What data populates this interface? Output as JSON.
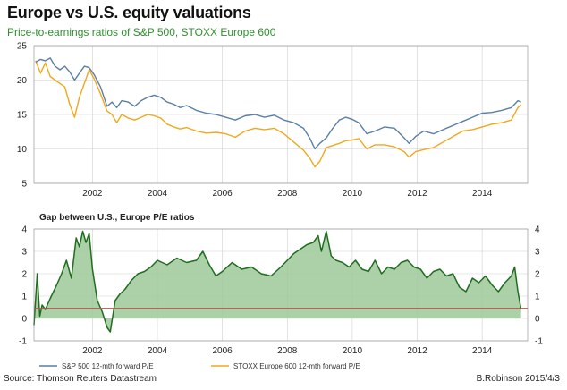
{
  "header": {
    "title": "Europe vs U.S. equity valuations",
    "subtitle": "Price-to-earnings ratios of S&P 500, STOXX Europe 600"
  },
  "footer": {
    "source": "Source: Thomson Reuters Datastream",
    "credit": "B.Robinson  2015/4/3"
  },
  "colors": {
    "sp500": "#5a7fa6",
    "stoxx": "#f0a81e",
    "gap_fill": "#9dc99a",
    "gap_line": "#1f6d1f",
    "zero_line": "#c0504d",
    "grid": "#d0d0d0"
  },
  "chart_data": [
    {
      "type": "line",
      "title": "Europe vs U.S. equity valuations",
      "subtitle": "Price-to-earnings ratios of S&P 500, STOXX Europe 600",
      "xlabel": "",
      "ylabel": "",
      "xlim": [
        2000.2,
        2015.4
      ],
      "ylim": [
        5,
        25
      ],
      "yticks": [
        5,
        10,
        15,
        20,
        25
      ],
      "xticks": [
        2002,
        2004,
        2006,
        2008,
        2010,
        2012,
        2014
      ],
      "grid": true,
      "series": [
        {
          "name": "S&P 500 12-mth forward P/E",
          "x": [
            2000.25,
            2000.4,
            2000.55,
            2000.7,
            2000.85,
            2001.0,
            2001.15,
            2001.3,
            2001.45,
            2001.6,
            2001.75,
            2001.9,
            2002.05,
            2002.25,
            2002.45,
            2002.6,
            2002.75,
            2002.9,
            2003.1,
            2003.3,
            2003.5,
            2003.7,
            2003.9,
            2004.1,
            2004.3,
            2004.5,
            2004.7,
            2004.9,
            2005.2,
            2005.5,
            2005.8,
            2006.1,
            2006.4,
            2006.7,
            2007.0,
            2007.3,
            2007.6,
            2007.9,
            2008.2,
            2008.5,
            2008.7,
            2008.85,
            2009.0,
            2009.2,
            2009.4,
            2009.6,
            2009.8,
            2010.0,
            2010.2,
            2010.45,
            2010.7,
            2011.0,
            2011.3,
            2011.6,
            2011.75,
            2011.95,
            2012.2,
            2012.5,
            2012.8,
            2013.1,
            2013.4,
            2013.7,
            2014.0,
            2014.3,
            2014.6,
            2014.9,
            2015.1,
            2015.2
          ],
          "values": [
            22.6,
            23.0,
            22.8,
            23.2,
            22.0,
            21.5,
            22.0,
            21.2,
            20.0,
            21.0,
            22.0,
            21.8,
            20.8,
            19.0,
            16.2,
            16.8,
            16.0,
            17.0,
            16.8,
            16.2,
            17.0,
            17.5,
            17.8,
            17.5,
            16.8,
            16.5,
            16.0,
            16.3,
            15.6,
            15.2,
            15.0,
            14.6,
            14.2,
            14.8,
            15.0,
            14.6,
            14.9,
            14.2,
            13.8,
            13.0,
            11.5,
            10.0,
            10.8,
            11.6,
            13.0,
            14.2,
            14.6,
            14.3,
            13.8,
            12.2,
            12.6,
            13.2,
            13.0,
            11.6,
            10.8,
            11.8,
            12.6,
            12.2,
            12.8,
            13.4,
            14.0,
            14.6,
            15.2,
            15.3,
            15.6,
            16.0,
            17.0,
            16.8
          ]
        },
        {
          "name": "STOXX Europe 600 12-mth forward P/E",
          "x": [
            2000.25,
            2000.4,
            2000.55,
            2000.7,
            2000.85,
            2001.0,
            2001.15,
            2001.3,
            2001.45,
            2001.6,
            2001.75,
            2001.9,
            2002.05,
            2002.25,
            2002.45,
            2002.6,
            2002.75,
            2002.9,
            2003.1,
            2003.3,
            2003.5,
            2003.7,
            2003.9,
            2004.1,
            2004.3,
            2004.5,
            2004.7,
            2004.9,
            2005.2,
            2005.5,
            2005.8,
            2006.1,
            2006.4,
            2006.7,
            2007.0,
            2007.3,
            2007.6,
            2007.9,
            2008.2,
            2008.5,
            2008.7,
            2008.85,
            2009.0,
            2009.2,
            2009.4,
            2009.6,
            2009.8,
            2010.0,
            2010.2,
            2010.45,
            2010.7,
            2011.0,
            2011.3,
            2011.6,
            2011.75,
            2011.95,
            2012.2,
            2012.5,
            2012.8,
            2013.1,
            2013.4,
            2013.7,
            2014.0,
            2014.3,
            2014.6,
            2014.9,
            2015.1,
            2015.2
          ],
          "values": [
            22.8,
            21.0,
            22.5,
            20.5,
            20.0,
            19.5,
            19.0,
            16.5,
            14.6,
            17.5,
            19.5,
            21.5,
            20.2,
            18.0,
            15.5,
            15.0,
            13.8,
            15.0,
            14.5,
            14.2,
            14.6,
            15.0,
            14.8,
            14.5,
            13.6,
            13.2,
            12.9,
            13.1,
            12.6,
            12.3,
            12.4,
            12.2,
            11.7,
            12.6,
            13.0,
            12.8,
            13.0,
            12.2,
            11.0,
            9.8,
            8.6,
            7.4,
            8.2,
            10.2,
            10.5,
            10.8,
            11.2,
            11.3,
            11.5,
            10.0,
            10.6,
            10.6,
            10.3,
            9.6,
            8.8,
            9.6,
            9.9,
            10.2,
            11.0,
            11.8,
            12.6,
            12.8,
            13.2,
            13.6,
            13.8,
            14.2,
            16.0,
            16.4
          ]
        }
      ],
      "legend": [
        {
          "name": "S&P 500 12-mth forward P/E"
        },
        {
          "name": "STOXX Europe 600 12-mth forward P/E"
        }
      ]
    },
    {
      "type": "area",
      "title": "Gap between U.S., Europe P/E ratios",
      "xlabel": "",
      "ylabel": "",
      "xlim": [
        2000.2,
        2015.4
      ],
      "ylim": [
        -1,
        4
      ],
      "yticks": [
        -1,
        0,
        1,
        2,
        3,
        4
      ],
      "xticks": [
        2002,
        2004,
        2006,
        2008,
        2010,
        2012,
        2014
      ],
      "reference_line": 0.45,
      "series": [
        {
          "name": "Gap between U.S., Europe P/E ratios",
          "x": [
            2000.2,
            2000.3,
            2000.38,
            2000.45,
            2000.55,
            2000.7,
            2000.9,
            2001.05,
            2001.2,
            2001.35,
            2001.5,
            2001.6,
            2001.7,
            2001.8,
            2001.9,
            2002.0,
            2002.15,
            2002.3,
            2002.45,
            2002.55,
            2002.7,
            2002.85,
            2003.0,
            2003.2,
            2003.4,
            2003.6,
            2003.8,
            2004.0,
            2004.3,
            2004.6,
            2004.9,
            2005.2,
            2005.4,
            2005.6,
            2005.8,
            2006.0,
            2006.3,
            2006.6,
            2006.9,
            2007.2,
            2007.5,
            2007.8,
            2008.0,
            2008.2,
            2008.4,
            2008.6,
            2008.8,
            2008.95,
            2009.05,
            2009.2,
            2009.35,
            2009.5,
            2009.7,
            2009.9,
            2010.1,
            2010.3,
            2010.5,
            2010.7,
            2010.9,
            2011.1,
            2011.3,
            2011.5,
            2011.7,
            2011.9,
            2012.1,
            2012.3,
            2012.5,
            2012.7,
            2012.9,
            2013.1,
            2013.3,
            2013.5,
            2013.7,
            2013.9,
            2014.1,
            2014.3,
            2014.5,
            2014.7,
            2014.9,
            2015.0,
            2015.1,
            2015.2
          ],
          "values": [
            -0.3,
            2.0,
            0.1,
            0.6,
            0.4,
            0.9,
            1.5,
            2.0,
            2.6,
            1.8,
            3.6,
            3.2,
            3.9,
            3.4,
            3.8,
            2.2,
            0.8,
            0.3,
            -0.4,
            -0.6,
            0.8,
            1.1,
            1.3,
            1.7,
            2.0,
            2.1,
            2.3,
            2.6,
            2.4,
            2.7,
            2.5,
            2.6,
            3.0,
            2.4,
            1.9,
            2.1,
            2.5,
            2.2,
            2.3,
            2.0,
            1.9,
            2.3,
            2.6,
            2.9,
            3.1,
            3.3,
            3.4,
            3.7,
            3.0,
            3.9,
            2.8,
            2.6,
            2.5,
            2.3,
            2.6,
            2.2,
            2.1,
            2.6,
            2.0,
            2.3,
            2.2,
            2.5,
            2.6,
            2.3,
            2.2,
            1.8,
            2.1,
            2.2,
            1.9,
            2.0,
            1.4,
            1.2,
            1.8,
            1.6,
            1.9,
            1.5,
            1.2,
            1.6,
            1.9,
            2.3,
            1.2,
            0.4
          ]
        }
      ]
    }
  ]
}
